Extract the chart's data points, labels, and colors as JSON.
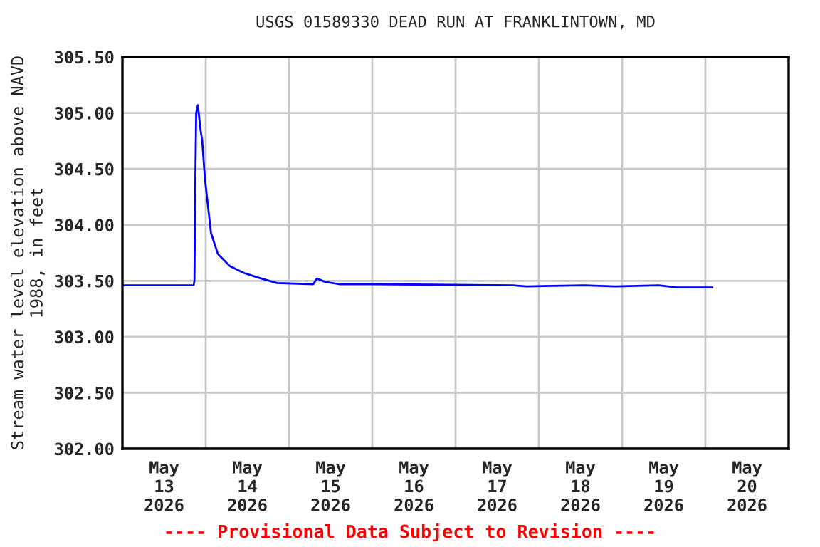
{
  "chart_data": {
    "type": "line",
    "title": "USGS 01589330 DEAD RUN AT FRANKLINTOWN, MD",
    "ylabel": "Stream water level elevation above NAVD\n1988, in feet",
    "annotations": [
      "---- Provisional Data Subject to Revision ----"
    ],
    "x": [
      "2026-05-13T00:00",
      "2026-05-13T10:00",
      "2026-05-13T20:30",
      "2026-05-13T20:45",
      "2026-05-13T21:00",
      "2026-05-13T21:15",
      "2026-05-13T21:45",
      "2026-05-13T22:30",
      "2026-05-13T23:00",
      "2026-05-13T23:45",
      "2026-05-14T00:30",
      "2026-05-14T01:30",
      "2026-05-14T03:30",
      "2026-05-14T07:00",
      "2026-05-14T11:00",
      "2026-05-14T15:00",
      "2026-05-14T20:30",
      "2026-05-15T07:00",
      "2026-05-15T08:00",
      "2026-05-15T10:30",
      "2026-05-15T14:30",
      "2026-05-16T00:00",
      "2026-05-17T16:30",
      "2026-05-17T20:30",
      "2026-05-18T13:00",
      "2026-05-18T22:00",
      "2026-05-19T10:30",
      "2026-05-19T16:00",
      "2026-05-20T02:00"
    ],
    "series": [
      {
        "color": "#0000ff",
        "values": [
          303.46,
          303.46,
          303.46,
          303.5,
          304.36,
          305.0,
          305.07,
          304.85,
          304.75,
          304.42,
          304.21,
          303.93,
          303.74,
          303.63,
          303.57,
          303.53,
          303.48,
          303.47,
          303.52,
          303.49,
          303.47,
          303.47,
          303.46,
          303.45,
          303.46,
          303.45,
          303.46,
          303.44,
          303.44
        ]
      }
    ],
    "xlim": [
      "2026-05-13T00:00",
      "2026-05-21T00:00"
    ],
    "xticks": [
      {
        "value": "2026-05-13T00:00",
        "label": null
      },
      {
        "value": "2026-05-14T00:00",
        "label": null
      },
      {
        "value": "2026-05-15T00:00",
        "label": null
      },
      {
        "value": "2026-05-16T00:00",
        "label": null
      },
      {
        "value": "2026-05-17T00:00",
        "label": null
      },
      {
        "value": "2026-05-18T00:00",
        "label": null
      },
      {
        "value": "2026-05-19T00:00",
        "label": null
      },
      {
        "value": "2026-05-20T00:00",
        "label": null
      },
      {
        "value": "2026-05-21T00:00",
        "label": null
      },
      {
        "value": "2026-05-13T12:00",
        "label": "May\n13\n2026"
      },
      {
        "value": "2026-05-14T12:00",
        "label": "May\n14\n2026"
      },
      {
        "value": "2026-05-15T12:00",
        "label": "May\n15\n2026"
      },
      {
        "value": "2026-05-16T12:00",
        "label": "May\n16\n2026"
      },
      {
        "value": "2026-05-17T12:00",
        "label": "May\n17\n2026"
      },
      {
        "value": "2026-05-18T12:00",
        "label": "May\n18\n2026"
      },
      {
        "value": "2026-05-19T12:00",
        "label": "May\n19\n2026"
      },
      {
        "value": "2026-05-20T12:00",
        "label": "May\n20\n2026"
      }
    ],
    "ylim": [
      302.0,
      305.5
    ],
    "yticks": [
      {
        "value": 302.0,
        "label": "302.00"
      },
      {
        "value": 302.5,
        "label": "302.50"
      },
      {
        "value": 303.0,
        "label": "303.00"
      },
      {
        "value": 303.5,
        "label": "303.50"
      },
      {
        "value": 304.0,
        "label": "304.00"
      },
      {
        "value": 304.5,
        "label": "304.50"
      },
      {
        "value": 305.0,
        "label": "305.00"
      },
      {
        "value": 305.5,
        "label": "305.50"
      }
    ],
    "grid": true,
    "legend": false,
    "line_style": "solid",
    "marker": "none"
  }
}
